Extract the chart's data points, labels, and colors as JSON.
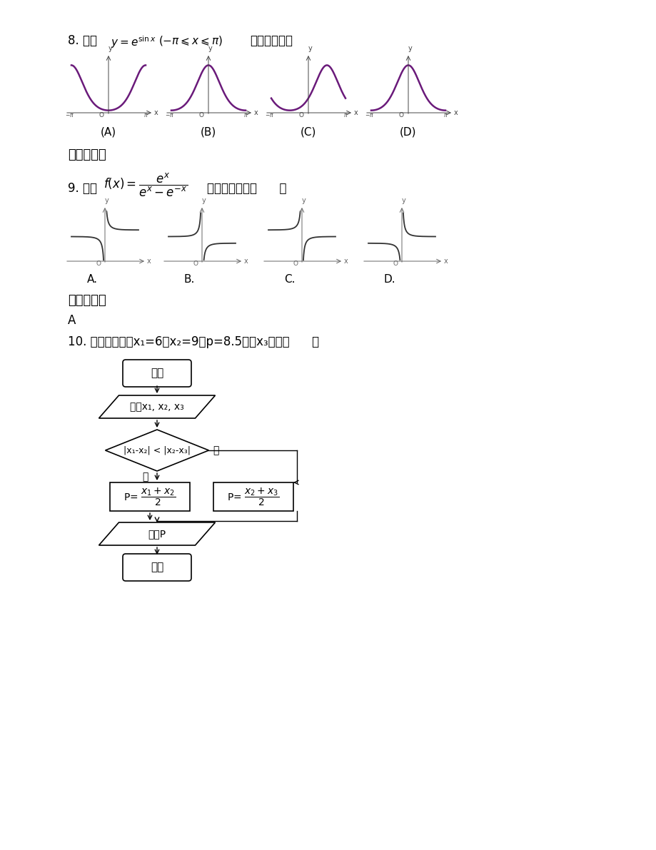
{
  "bg_color": "#ffffff",
  "text_color": "#000000",
  "curve_color": "#6a1a7a",
  "q8_labels": [
    "(A)",
    "(B)",
    "(C)",
    "(D)"
  ],
  "q9_labels": [
    "A.",
    "B.",
    "C.",
    "D."
  ]
}
